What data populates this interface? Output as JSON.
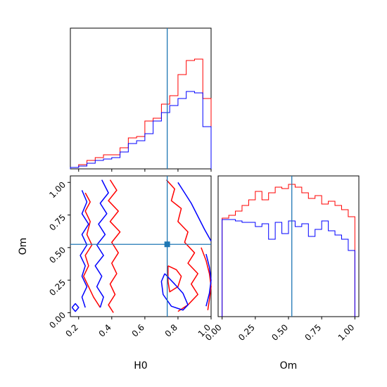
{
  "chart_data": [
    {
      "panel": "H0 marginal",
      "type": "histogram",
      "xlim": [
        0.15,
        1.0
      ],
      "truth": 0.735,
      "series": [
        {
          "color": "#ff0000",
          "bins": [
            0.15,
            0.2,
            0.25,
            0.3,
            0.35,
            0.4,
            0.45,
            0.5,
            0.55,
            0.6,
            0.65,
            0.7,
            0.75,
            0.8,
            0.85,
            0.9,
            0.95,
            1.0
          ],
          "values": [
            0.01,
            0.03,
            0.06,
            0.08,
            0.1,
            0.1,
            0.15,
            0.22,
            0.23,
            0.34,
            0.36,
            0.46,
            0.52,
            0.67,
            0.77,
            0.78,
            0.5
          ]
        },
        {
          "color": "#0000ff",
          "bins": [
            0.15,
            0.2,
            0.25,
            0.3,
            0.35,
            0.4,
            0.45,
            0.5,
            0.55,
            0.6,
            0.65,
            0.7,
            0.75,
            0.8,
            0.85,
            0.9,
            0.95,
            1.0
          ],
          "values": [
            0.01,
            0.02,
            0.04,
            0.06,
            0.07,
            0.08,
            0.12,
            0.18,
            0.2,
            0.25,
            0.34,
            0.4,
            0.45,
            0.5,
            0.55,
            0.54,
            0.3
          ]
        }
      ]
    },
    {
      "panel": "Om vs H0 contours",
      "type": "contour",
      "xlabel": "H0",
      "ylabel": "Om",
      "xlim": [
        0.15,
        1.0
      ],
      "ylim": [
        -0.03,
        1.05
      ],
      "xticks": [
        "0.2",
        "0.4",
        "0.6",
        "0.8",
        "1.0"
      ],
      "yticks": [
        "0.00",
        "0.25",
        "0.50",
        "0.75",
        "1.00"
      ],
      "truth": {
        "x": 0.735,
        "y": 0.525
      },
      "series": [
        {
          "color": "#ff0000",
          "contours": [
            [
              [
                0.24,
                0.92
              ],
              [
                0.27,
                0.85
              ],
              [
                0.24,
                0.78
              ],
              [
                0.27,
                0.7
              ],
              [
                0.25,
                0.6
              ],
              [
                0.28,
                0.52
              ],
              [
                0.24,
                0.44
              ],
              [
                0.26,
                0.36
              ],
              [
                0.23,
                0.28
              ],
              [
                0.26,
                0.2
              ],
              [
                0.29,
                0.12
              ],
              [
                0.33,
                0.04
              ]
            ],
            [
              [
                0.39,
                1.02
              ],
              [
                0.43,
                0.94
              ],
              [
                0.38,
                0.86
              ],
              [
                0.44,
                0.78
              ],
              [
                0.39,
                0.7
              ],
              [
                0.45,
                0.62
              ],
              [
                0.4,
                0.54
              ],
              [
                0.44,
                0.46
              ],
              [
                0.4,
                0.38
              ],
              [
                0.43,
                0.3
              ],
              [
                0.39,
                0.22
              ],
              [
                0.42,
                0.14
              ],
              [
                0.38,
                0.06
              ],
              [
                0.41,
                0.0
              ]
            ],
            [
              [
                0.73,
                1.02
              ],
              [
                0.78,
                0.95
              ],
              [
                0.76,
                0.86
              ],
              [
                0.82,
                0.8
              ],
              [
                0.8,
                0.7
              ],
              [
                0.86,
                0.62
              ],
              [
                0.84,
                0.54
              ],
              [
                0.9,
                0.46
              ],
              [
                0.86,
                0.38
              ],
              [
                0.92,
                0.3
              ],
              [
                0.88,
                0.22
              ],
              [
                0.92,
                0.14
              ],
              [
                0.86,
                0.06
              ],
              [
                0.8,
                0.01
              ]
            ],
            [
              [
                0.74,
                0.36
              ],
              [
                0.79,
                0.33
              ],
              [
                0.82,
                0.28
              ],
              [
                0.8,
                0.2
              ],
              [
                0.75,
                0.16
              ],
              [
                0.74,
                0.24
              ],
              [
                0.74,
                0.36
              ]
            ],
            [
              [
                0.94,
                0.5
              ],
              [
                0.97,
                0.4
              ],
              [
                0.99,
                0.3
              ],
              [
                1.0,
                0.2
              ],
              [
                0.99,
                0.1
              ],
              [
                0.98,
                0.02
              ]
            ]
          ]
        },
        {
          "color": "#0000ff",
          "contours": [
            [
              [
                0.22,
                0.94
              ],
              [
                0.25,
                0.85
              ],
              [
                0.22,
                0.76
              ],
              [
                0.26,
                0.68
              ],
              [
                0.22,
                0.6
              ],
              [
                0.25,
                0.52
              ],
              [
                0.21,
                0.44
              ],
              [
                0.24,
                0.36
              ],
              [
                0.22,
                0.28
              ],
              [
                0.25,
                0.2
              ],
              [
                0.22,
                0.12
              ],
              [
                0.24,
                0.04
              ]
            ],
            [
              [
                0.34,
                1.02
              ],
              [
                0.38,
                0.92
              ],
              [
                0.33,
                0.84
              ],
              [
                0.37,
                0.76
              ],
              [
                0.32,
                0.68
              ],
              [
                0.36,
                0.6
              ],
              [
                0.31,
                0.52
              ],
              [
                0.35,
                0.44
              ],
              [
                0.3,
                0.36
              ],
              [
                0.34,
                0.28
              ],
              [
                0.31,
                0.2
              ],
              [
                0.35,
                0.12
              ],
              [
                0.33,
                0.04
              ]
            ],
            [
              [
                0.8,
                1.0
              ],
              [
                0.84,
                0.92
              ],
              [
                0.88,
                0.84
              ],
              [
                0.92,
                0.74
              ],
              [
                0.96,
                0.64
              ],
              [
                1.0,
                0.55
              ]
            ],
            [
              [
                0.72,
                0.3
              ],
              [
                0.78,
                0.22
              ],
              [
                0.83,
                0.15
              ],
              [
                0.86,
                0.06
              ],
              [
                0.83,
                0.02
              ],
              [
                0.76,
                0.05
              ],
              [
                0.71,
                0.14
              ],
              [
                0.7,
                0.24
              ],
              [
                0.72,
                0.3
              ]
            ],
            [
              [
                0.97,
                0.45
              ],
              [
                0.99,
                0.35
              ],
              [
                1.0,
                0.25
              ],
              [
                0.99,
                0.15
              ],
              [
                0.97,
                0.05
              ]
            ],
            [
              [
                0.16,
                0.04
              ],
              [
                0.18,
                0.07
              ],
              [
                0.2,
                0.04
              ],
              [
                0.18,
                0.01
              ],
              [
                0.16,
                0.04
              ]
            ]
          ]
        }
      ]
    },
    {
      "panel": "Om marginal",
      "type": "histogram",
      "xlabel": "Om",
      "xlim": [
        -0.03,
        1.03
      ],
      "xticks": [
        "0.00",
        "0.25",
        "0.50",
        "0.75",
        "1.00"
      ],
      "truth": 0.525,
      "series": [
        {
          "color": "#ff0000",
          "bins": [
            0.0,
            0.05,
            0.1,
            0.15,
            0.2,
            0.25,
            0.3,
            0.35,
            0.4,
            0.45,
            0.5,
            0.55,
            0.6,
            0.65,
            0.7,
            0.75,
            0.8,
            0.85,
            0.9,
            0.95,
            1.0
          ],
          "values": [
            0.7,
            0.72,
            0.75,
            0.79,
            0.83,
            0.89,
            0.83,
            0.88,
            0.92,
            0.91,
            0.94,
            0.92,
            0.88,
            0.84,
            0.86,
            0.8,
            0.82,
            0.79,
            0.76,
            0.71
          ]
        },
        {
          "color": "#0000ff",
          "bins": [
            0.0,
            0.05,
            0.1,
            0.15,
            0.2,
            0.25,
            0.3,
            0.35,
            0.4,
            0.45,
            0.5,
            0.55,
            0.6,
            0.65,
            0.7,
            0.75,
            0.8,
            0.85,
            0.9,
            0.95,
            1.0
          ],
          "values": [
            0.69,
            0.69,
            0.68,
            0.67,
            0.67,
            0.64,
            0.66,
            0.55,
            0.67,
            0.59,
            0.68,
            0.64,
            0.66,
            0.57,
            0.62,
            0.68,
            0.61,
            0.58,
            0.55,
            0.47
          ]
        }
      ]
    }
  ]
}
